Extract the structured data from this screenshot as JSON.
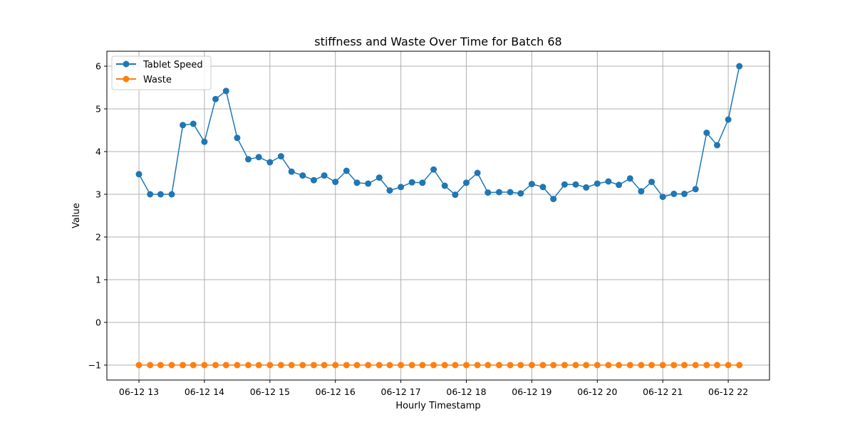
{
  "chart_data": {
    "type": "line",
    "title": "stiffness and Waste Over Time for Batch 68",
    "xlabel": "Hourly Timestamp",
    "ylabel": "Value",
    "x_unit": "hour",
    "x_ticks": [
      "06-12 13",
      "06-12 14",
      "06-12 15",
      "06-12 16",
      "06-12 17",
      "06-12 18",
      "06-12 19",
      "06-12 20",
      "06-12 21",
      "06-12 22"
    ],
    "x_tick_hours": [
      13,
      14,
      15,
      16,
      17,
      18,
      19,
      20,
      21,
      22
    ],
    "xlim": [
      12.51,
      22.63
    ],
    "y_ticks": [
      "−1",
      "0",
      "1",
      "2",
      "3",
      "4",
      "5",
      "6"
    ],
    "y_tick_values": [
      -1,
      0,
      1,
      2,
      3,
      4,
      5,
      6
    ],
    "ylim": [
      -1.35,
      6.35
    ],
    "grid": true,
    "legend_position": "top-left",
    "series": [
      {
        "name": "Tablet Speed",
        "color": "#1f77b4",
        "x": [
          13.0,
          13.17,
          13.33,
          13.5,
          13.67,
          13.83,
          14.0,
          14.17,
          14.33,
          14.5,
          14.67,
          14.83,
          15.0,
          15.17,
          15.33,
          15.5,
          15.67,
          15.83,
          16.0,
          16.17,
          16.33,
          16.5,
          16.67,
          16.83,
          17.0,
          17.17,
          17.33,
          17.5,
          17.67,
          17.83,
          18.0,
          18.17,
          18.33,
          18.5,
          18.67,
          18.83,
          19.0,
          19.17,
          19.33,
          19.5,
          19.67,
          19.83,
          20.0,
          20.17,
          20.33,
          20.5,
          20.67,
          20.83,
          21.0,
          21.17,
          21.33,
          21.5,
          21.67,
          21.83,
          22.0,
          22.17
        ],
        "y": [
          3.47,
          3.0,
          3.0,
          3.0,
          4.62,
          4.65,
          4.23,
          5.23,
          5.42,
          4.32,
          3.82,
          3.87,
          3.75,
          3.89,
          3.53,
          3.44,
          3.33,
          3.44,
          3.29,
          3.55,
          3.27,
          3.25,
          3.39,
          3.09,
          3.17,
          3.28,
          3.27,
          3.58,
          3.2,
          2.99,
          3.27,
          3.5,
          3.04,
          3.05,
          3.05,
          3.02,
          3.24,
          3.17,
          2.89,
          3.23,
          3.23,
          3.16,
          3.25,
          3.3,
          3.22,
          3.37,
          3.07,
          3.29,
          2.94,
          3.01,
          3.01,
          3.12,
          4.44,
          4.15,
          4.75,
          6.0
        ]
      },
      {
        "name": "Waste",
        "color": "#ff7f0e",
        "x": [
          13.0,
          13.17,
          13.33,
          13.5,
          13.67,
          13.83,
          14.0,
          14.17,
          14.33,
          14.5,
          14.67,
          14.83,
          15.0,
          15.17,
          15.33,
          15.5,
          15.67,
          15.83,
          16.0,
          16.17,
          16.33,
          16.5,
          16.67,
          16.83,
          17.0,
          17.17,
          17.33,
          17.5,
          17.67,
          17.83,
          18.0,
          18.17,
          18.33,
          18.5,
          18.67,
          18.83,
          19.0,
          19.17,
          19.33,
          19.5,
          19.67,
          19.83,
          20.0,
          20.17,
          20.33,
          20.5,
          20.67,
          20.83,
          21.0,
          21.17,
          21.33,
          21.5,
          21.67,
          21.83,
          22.0,
          22.17
        ],
        "y": [
          -1,
          -1,
          -1,
          -1,
          -1,
          -1,
          -1,
          -1,
          -1,
          -1,
          -1,
          -1,
          -1,
          -1,
          -1,
          -1,
          -1,
          -1,
          -1,
          -1,
          -1,
          -1,
          -1,
          -1,
          -1,
          -1,
          -1,
          -1,
          -1,
          -1,
          -1,
          -1,
          -1,
          -1,
          -1,
          -1,
          -1,
          -1,
          -1,
          -1,
          -1,
          -1,
          -1,
          -1,
          -1,
          -1,
          -1,
          -1,
          -1,
          -1,
          -1,
          -1,
          -1,
          -1,
          -1,
          -1
        ]
      }
    ]
  }
}
